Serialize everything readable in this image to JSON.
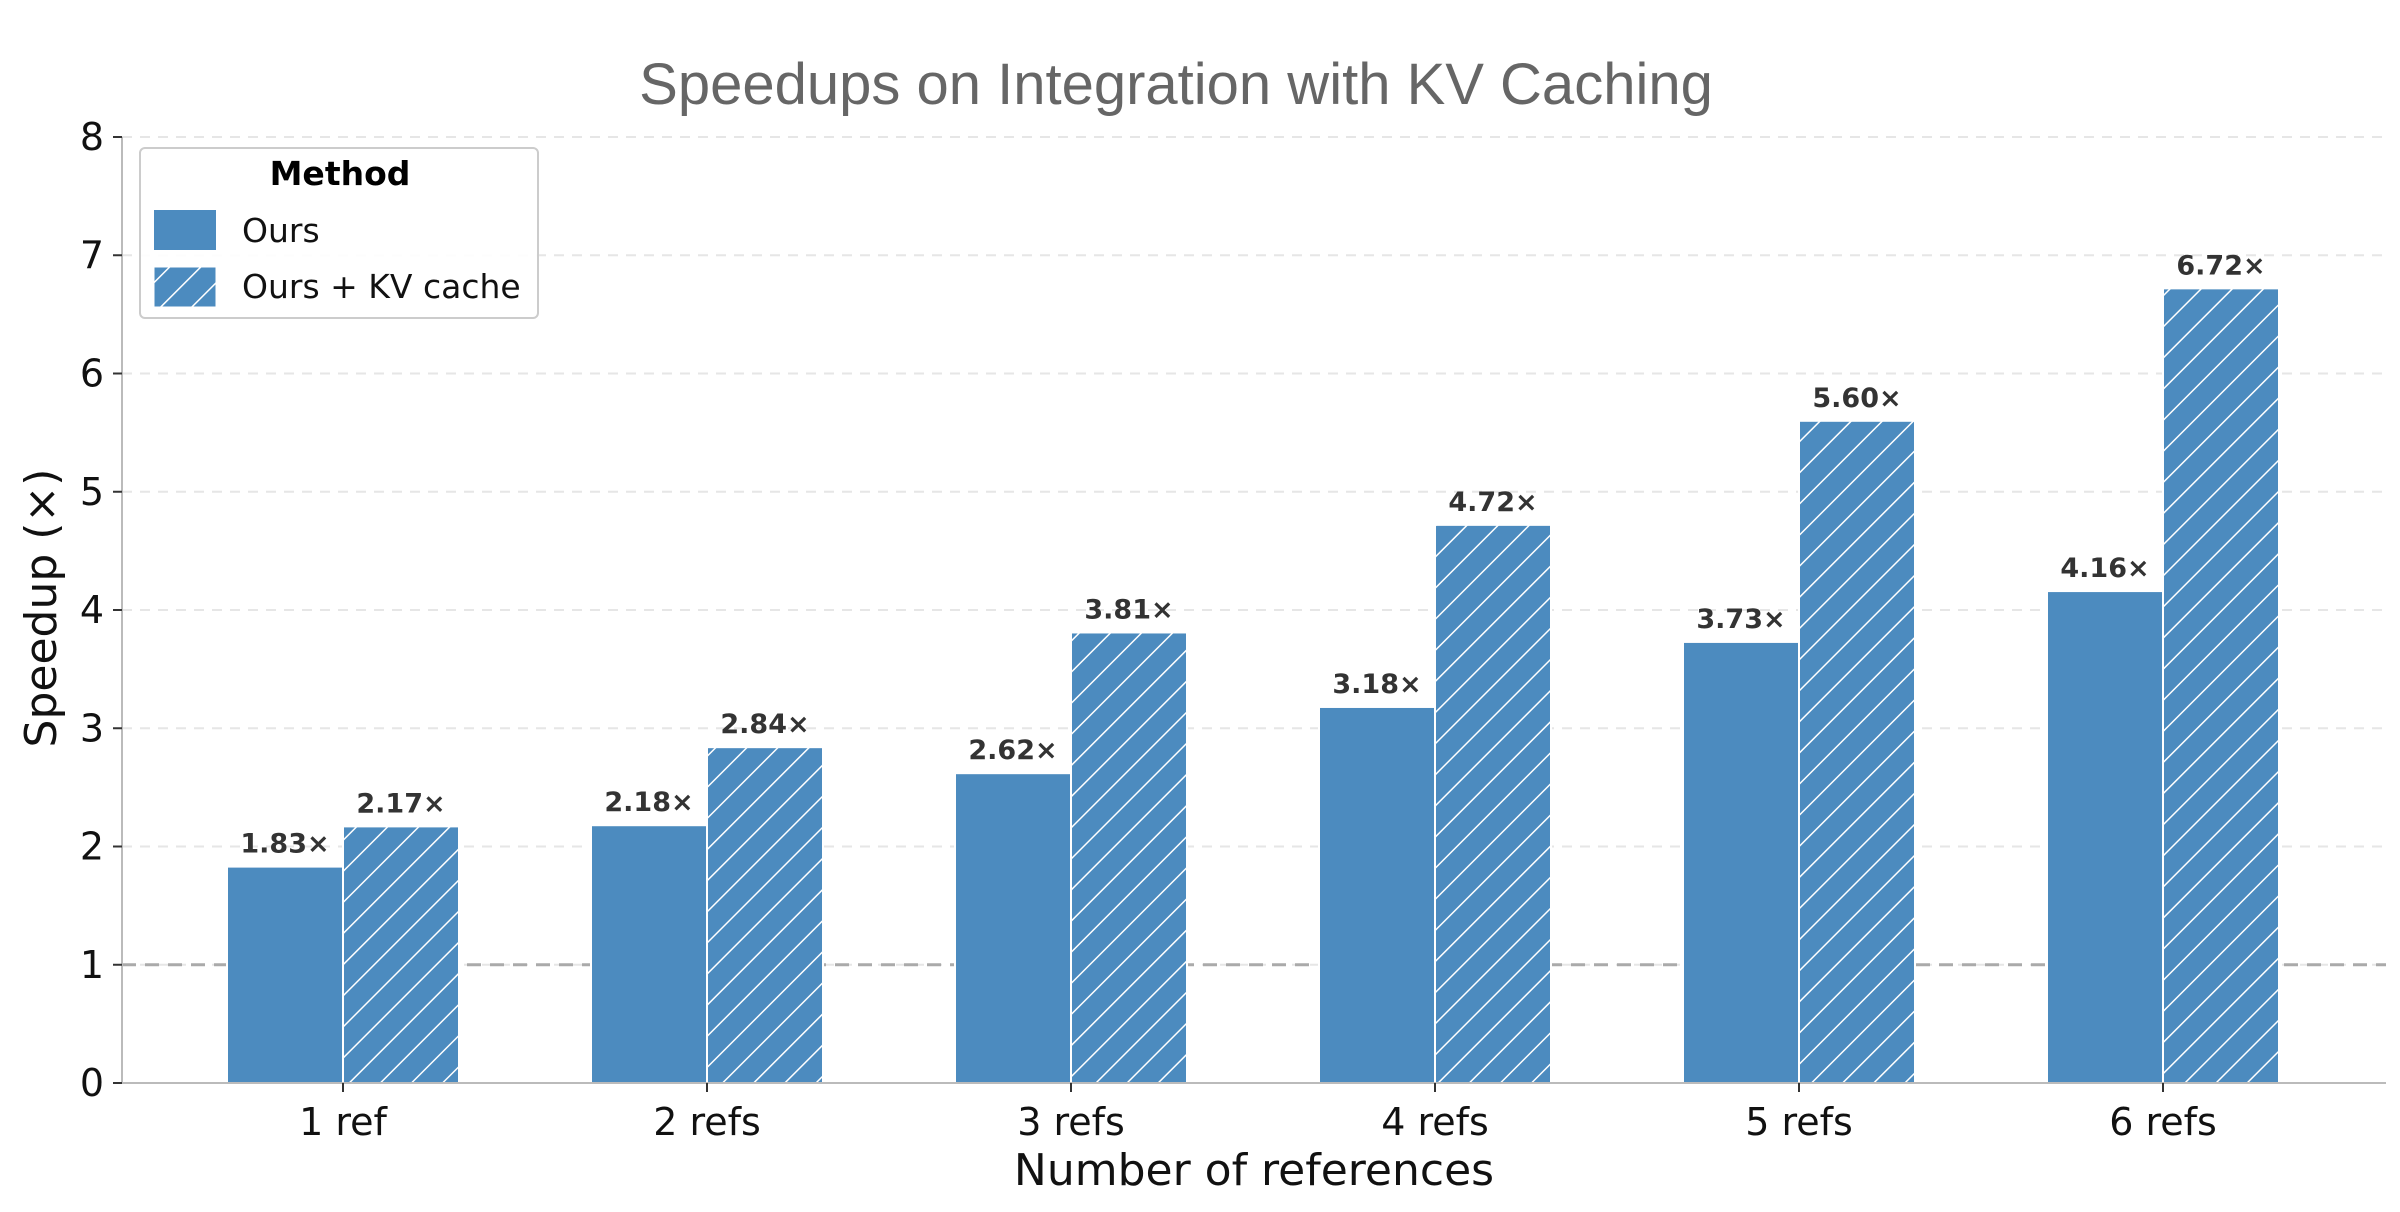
{
  "chart_data": {
    "type": "bar",
    "title": "Speedups on Integration with KV Caching",
    "xlabel": "Number of references",
    "ylabel": "Speedup (×)",
    "categories": [
      "1 ref",
      "2 refs",
      "3 refs",
      "4 refs",
      "5 refs",
      "6 refs"
    ],
    "series": [
      {
        "name": "Ours",
        "values": [
          1.83,
          2.18,
          2.62,
          3.18,
          3.73,
          4.16
        ],
        "labels": [
          "1.83×",
          "2.18×",
          "2.62×",
          "3.18×",
          "3.73×",
          "4.16×"
        ],
        "pattern": "solid"
      },
      {
        "name": "Ours + KV cache",
        "values": [
          2.17,
          2.84,
          3.81,
          4.72,
          5.6,
          6.72
        ],
        "labels": [
          "2.17×",
          "2.84×",
          "3.81×",
          "4.72×",
          "5.60×",
          "6.72×"
        ],
        "pattern": "hatched"
      }
    ],
    "ylim": [
      0,
      8
    ],
    "yticks": [
      0,
      1,
      2,
      3,
      4,
      5,
      6,
      7,
      8
    ],
    "ytick_labels": [
      "0",
      "1",
      "2",
      "3",
      "4",
      "5",
      "6",
      "7",
      "8"
    ],
    "reference_line": 1,
    "grid": "horizontal dashed",
    "legend_title": "Method",
    "legend_position": "top-left"
  },
  "colors": {
    "bar": "#4c8bbf",
    "hatch": "#ffffff",
    "grid": "#e6e6e6",
    "reference_line": "#aaaaaa",
    "axis": "#bbbbbb",
    "title": "#666666",
    "text": "#111111",
    "bar_label": "#333333"
  }
}
